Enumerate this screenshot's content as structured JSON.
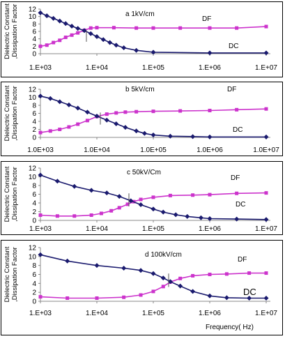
{
  "shared": {
    "y_axis_label": "Dielectric Constant ,Dissipation Factor",
    "x_axis_label": "Frequency( Hz)",
    "df_color": "#cc33cc",
    "dc_color": "#1a1a6e"
  },
  "chart_data": [
    {
      "type": "line",
      "title": "a    1kV/cm",
      "panel_letter": "a",
      "x_scale": "log",
      "x_ticks": [
        "1.E+03",
        "1.E+04",
        "1.E+05",
        "1.E+06",
        "1.E+07"
      ],
      "y_ticks": [
        "0",
        "2",
        "4",
        "6",
        "8",
        "10",
        "12"
      ],
      "ylim": [
        0,
        12
      ],
      "xlim": [
        1000,
        10000000
      ],
      "grid": false,
      "series": [
        {
          "name": "DF",
          "marker": "square",
          "x": [
            1000,
            1300,
            1700,
            2200,
            2800,
            3600,
            4600,
            6000,
            7800,
            10000,
            20000,
            50000,
            100000,
            300000,
            1000000,
            3000000,
            10000000
          ],
          "y": [
            2.0,
            2.3,
            3.0,
            3.6,
            4.4,
            5.0,
            5.6,
            6.3,
            6.9,
            7.0,
            7.0,
            6.9,
            6.9,
            6.9,
            6.9,
            6.9,
            7.3
          ]
        },
        {
          "name": "DC",
          "marker": "diamond",
          "x": [
            1000,
            1300,
            1700,
            2200,
            2800,
            3600,
            4600,
            6000,
            7800,
            10000,
            13000,
            17000,
            22000,
            30000,
            50000,
            100000,
            1000000,
            10000000
          ],
          "y": [
            11.0,
            10.2,
            9.5,
            8.8,
            8.1,
            7.4,
            6.8,
            6.2,
            5.4,
            4.6,
            3.8,
            3.0,
            2.3,
            1.6,
            0.9,
            0.4,
            0.2,
            0.2
          ]
        }
      ]
    },
    {
      "type": "line",
      "title": "b     5kV/cm",
      "panel_letter": "b",
      "x_scale": "log",
      "x_ticks": [
        "1.0E+03",
        "1.0E+04",
        "1.0E+05",
        "1.0E+06",
        "1.0E+07"
      ],
      "y_ticks": [
        "0",
        "2",
        "4",
        "6",
        "8",
        "10",
        "12"
      ],
      "ylim": [
        0,
        12
      ],
      "xlim": [
        1000,
        10000000
      ],
      "grid": false,
      "series": [
        {
          "name": "DF",
          "marker": "square",
          "x": [
            1000,
            1500,
            2200,
            3200,
            4600,
            6800,
            10000,
            15000,
            22000,
            32000,
            50000,
            100000,
            300000,
            1000000,
            3000000,
            10000000
          ],
          "y": [
            1.2,
            1.6,
            2.0,
            2.6,
            3.3,
            4.2,
            5.2,
            5.8,
            6.1,
            6.3,
            6.4,
            6.5,
            6.6,
            6.7,
            6.9,
            7.1
          ]
        },
        {
          "name": "DC",
          "marker": "diamond",
          "x": [
            1000,
            1500,
            2200,
            3200,
            4600,
            6800,
            10000,
            15000,
            22000,
            32000,
            50000,
            70000,
            100000,
            200000,
            500000,
            1000000,
            10000000
          ],
          "y": [
            10.3,
            9.7,
            8.9,
            8.1,
            7.3,
            6.3,
            5.3,
            4.3,
            3.4,
            2.5,
            1.6,
            1.0,
            0.6,
            0.3,
            0.2,
            0.1,
            0.1
          ]
        }
      ]
    },
    {
      "type": "line",
      "title": "c    50kV/Cm",
      "panel_letter": "c",
      "x_scale": "log",
      "x_ticks": [
        "1.E+03",
        "1.E+04",
        "1.E+05",
        "1.E+06",
        "1.E+07"
      ],
      "y_ticks": [
        "0",
        "2",
        "4",
        "6",
        "8",
        "10",
        "12"
      ],
      "ylim": [
        0,
        12
      ],
      "xlim": [
        1000,
        10000000
      ],
      "grid": false,
      "series": [
        {
          "name": "DF",
          "marker": "square",
          "x": [
            1000,
            2000,
            4000,
            8000,
            12000,
            18000,
            25000,
            35000,
            45000,
            60000,
            100000,
            200000,
            500000,
            1000000,
            3000000,
            10000000
          ],
          "y": [
            1.2,
            1.0,
            1.0,
            1.2,
            1.6,
            2.2,
            2.9,
            3.7,
            4.3,
            4.8,
            5.3,
            5.7,
            5.8,
            5.9,
            6.2,
            6.3
          ]
        },
        {
          "name": "DC",
          "marker": "diamond",
          "x": [
            1000,
            2000,
            4000,
            8000,
            15000,
            25000,
            40000,
            60000,
            100000,
            150000,
            250000,
            400000,
            700000,
            1000000,
            3000000,
            10000000
          ],
          "y": [
            10.4,
            9.0,
            7.8,
            6.9,
            6.3,
            5.5,
            4.5,
            3.6,
            2.6,
            1.9,
            1.3,
            0.9,
            0.6,
            0.4,
            0.3,
            0.2
          ]
        }
      ]
    },
    {
      "type": "line",
      "title": "d     100kV/cm",
      "panel_letter": "d",
      "x_scale": "log",
      "x_ticks": [
        "1.E+03",
        "1.E+04",
        "1.E+05",
        "1.E+06",
        "1.E+07"
      ],
      "y_ticks": [
        "0",
        "2",
        "4",
        "6",
        "8",
        "10",
        "12"
      ],
      "ylim": [
        0,
        12
      ],
      "xlim": [
        1000,
        10000000
      ],
      "grid": false,
      "series": [
        {
          "name": "DF",
          "marker": "square",
          "x": [
            1000,
            3000,
            10000,
            30000,
            60000,
            100000,
            150000,
            200000,
            300000,
            500000,
            1000000,
            2000000,
            5000000,
            10000000
          ],
          "y": [
            1.0,
            0.7,
            0.7,
            0.9,
            1.4,
            2.2,
            3.3,
            4.3,
            5.1,
            5.7,
            6.0,
            6.1,
            6.3,
            6.3
          ]
        },
        {
          "name": "DC",
          "marker": "diamond",
          "x": [
            1000,
            3000,
            10000,
            30000,
            60000,
            100000,
            150000,
            200000,
            300000,
            500000,
            1000000,
            2000000,
            5000000,
            10000000
          ],
          "y": [
            10.4,
            9.0,
            8.0,
            7.4,
            6.9,
            6.2,
            5.2,
            4.4,
            3.4,
            2.2,
            1.2,
            0.8,
            0.7,
            0.7
          ]
        }
      ]
    }
  ]
}
